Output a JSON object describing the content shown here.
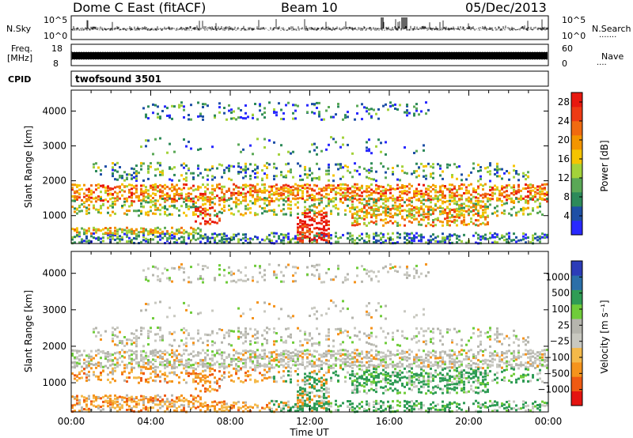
{
  "header": {
    "title": "Dome C East (fitACF)",
    "beam": "Beam 10",
    "date": "05/Dec/2013"
  },
  "top_panels": {
    "nsky_label": "N.Sky",
    "nsearch_label": "N.Search",
    "nsearch_marker": "·······",
    "count_tick_hi": "10^5",
    "count_tick_lo": "10^0",
    "freq_label_1": "Freq.",
    "freq_label_2": "[MHz]",
    "freq_tick_hi": "18",
    "freq_tick_lo": "8",
    "nave_label": "Nave",
    "nave_marker": "····",
    "nave_tick_hi": "60",
    "nave_tick_lo": "0",
    "cpid_label": "CPID",
    "cpid_value": "twofsound 3501"
  },
  "colors": {
    "power_scale": [
      "#2929ff",
      "#1e4fa6",
      "#2d8a5a",
      "#5aa856",
      "#a3d23a",
      "#f5c400",
      "#f39500",
      "#f06a10",
      "#ee3a14",
      "#e8180f"
    ],
    "velocity_scale": [
      "#e41410",
      "#ef5a12",
      "#f5931c",
      "#f4b94a",
      "#c8c8c0",
      "#b5b5ad",
      "#6fcc3a",
      "#2f9c55",
      "#2b6fa8",
      "#2c3cb8"
    ]
  },
  "chart_data": [
    {
      "type": "heatmap",
      "panel": "power",
      "xlabel": "Time UT",
      "ylabel": "Slant Range [km]",
      "x_ticks": [
        "00:00",
        "04:00",
        "08:00",
        "12:00",
        "16:00",
        "20:00",
        "00:00"
      ],
      "xlim_hours": [
        0,
        24
      ],
      "y_ticks": [
        1000,
        2000,
        3000,
        4000
      ],
      "ylim_km": [
        200,
        4600
      ],
      "colorbar_label": "Power [dB]",
      "colorbar_ticks": [
        "4",
        "8",
        "12",
        "16",
        "20",
        "24",
        "28"
      ],
      "colorbar_range": [
        0,
        30
      ]
    },
    {
      "type": "heatmap",
      "panel": "velocity",
      "xlabel": "Time UT",
      "ylabel": "Slant Range [km]",
      "x_ticks": [
        "00:00",
        "04:00",
        "08:00",
        "12:00",
        "16:00",
        "20:00",
        "00:00"
      ],
      "xlim_hours": [
        0,
        24
      ],
      "y_ticks": [
        1000,
        2000,
        3000,
        4000
      ],
      "ylim_km": [
        200,
        4600
      ],
      "colorbar_label": "Velocity [m s⁻¹]",
      "colorbar_ticks": [
        "1000",
        "500",
        "100",
        "25",
        "−25",
        "−100",
        "−500",
        "−1000"
      ]
    }
  ]
}
